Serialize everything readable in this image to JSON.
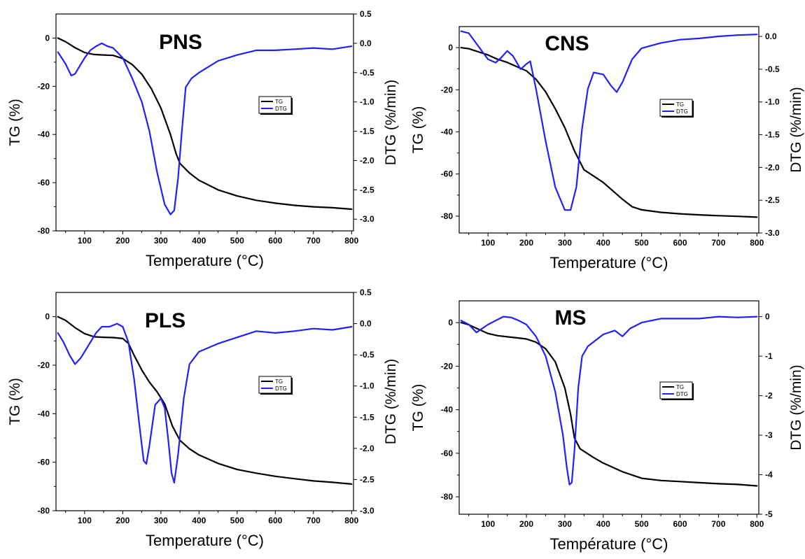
{
  "figure": {
    "colors": {
      "tg": "#000000",
      "dtg": "#2020ff",
      "axis": "#000000",
      "background": "#ffffff"
    }
  },
  "chart_data": [
    {
      "type": "line",
      "title": "PNS",
      "xlabel": "Temperature (°C)",
      "ylabel": "TG (%)",
      "y2label": "DTG (%/min)",
      "xlim": [
        25,
        805
      ],
      "ylim": [
        -80,
        10
      ],
      "y2lim": [
        -3.2,
        0.5
      ],
      "xticks": [
        100,
        200,
        300,
        400,
        500,
        600,
        700,
        800
      ],
      "yticks": [
        0,
        -20,
        -40,
        -60,
        -80
      ],
      "y2ticks": [
        0.5,
        0.0,
        -0.5,
        -1.0,
        -1.5,
        -2.0,
        -2.5,
        -3.0
      ],
      "y2tick_labels": [
        "0.5",
        "0.0",
        "-0.5",
        "-1.0",
        "-1.5",
        "-2.0",
        "-2.5",
        "-3.0"
      ],
      "grid": false,
      "legend_position": "center-right",
      "series": [
        {
          "name": "TG",
          "axis": "left",
          "color": "#000000",
          "x": [
            30,
            50,
            75,
            100,
            125,
            150,
            175,
            200,
            225,
            250,
            275,
            300,
            325,
            340,
            350,
            375,
            400,
            450,
            500,
            550,
            600,
            650,
            700,
            750,
            800
          ],
          "y": [
            0,
            -1.5,
            -4,
            -6,
            -6.8,
            -7,
            -7.2,
            -8.5,
            -11,
            -15,
            -21,
            -29,
            -40,
            -48,
            -52,
            -56,
            -59,
            -63,
            -65.5,
            -67.3,
            -68.5,
            -69.4,
            -70,
            -70.4,
            -71
          ]
        },
        {
          "name": "DTG",
          "axis": "right",
          "color": "#2020ff",
          "x": [
            30,
            50,
            65,
            75,
            100,
            115,
            130,
            145,
            160,
            175,
            200,
            225,
            250,
            270,
            290,
            310,
            325,
            335,
            345,
            355,
            365,
            380,
            400,
            450,
            500,
            550,
            600,
            650,
            700,
            750,
            800
          ],
          "y": [
            -0.15,
            -0.35,
            -0.55,
            -0.52,
            -0.25,
            -0.12,
            -0.05,
            0.0,
            -0.05,
            -0.08,
            -0.25,
            -0.6,
            -1.0,
            -1.5,
            -2.2,
            -2.75,
            -2.92,
            -2.85,
            -2.3,
            -1.5,
            -0.75,
            -0.6,
            -0.5,
            -0.3,
            -0.2,
            -0.12,
            -0.12,
            -0.1,
            -0.08,
            -0.1,
            -0.05
          ]
        }
      ]
    },
    {
      "type": "line",
      "title": "CNS",
      "xlabel": "Temperature (°C)",
      "ylabel": "TG (%)",
      "y2label": "DTG (%/min)",
      "xlim": [
        25,
        805
      ],
      "ylim": [
        -88,
        10
      ],
      "y2lim": [
        -3.0,
        0.15
      ],
      "xticks": [
        100,
        200,
        300,
        400,
        500,
        600,
        700,
        800
      ],
      "yticks": [
        0,
        -20,
        -40,
        -60,
        -80
      ],
      "y2ticks": [
        0.0,
        -0.5,
        -1.0,
        -1.5,
        -2.0,
        -2.5,
        -3.0
      ],
      "y2tick_labels": [
        "0.0",
        "-0.5",
        "-1.0",
        "-1.5",
        "-2.0",
        "-2.5",
        "-3.0"
      ],
      "grid": false,
      "legend_position": "center-right",
      "series": [
        {
          "name": "TG",
          "axis": "left",
          "color": "#000000",
          "x": [
            30,
            50,
            75,
            100,
            125,
            150,
            175,
            200,
            225,
            250,
            275,
            300,
            325,
            350,
            375,
            400,
            425,
            450,
            475,
            500,
            550,
            600,
            650,
            700,
            750,
            800
          ],
          "y": [
            0,
            -0.5,
            -2,
            -3.5,
            -5.5,
            -7,
            -9,
            -11,
            -15,
            -21,
            -29,
            -38,
            -49,
            -58,
            -61,
            -64,
            -68,
            -72,
            -75.5,
            -77,
            -78.2,
            -78.9,
            -79.4,
            -79.8,
            -80.1,
            -80.5
          ]
        },
        {
          "name": "DTG",
          "axis": "right",
          "color": "#2020ff",
          "x": [
            30,
            50,
            75,
            100,
            120,
            135,
            150,
            165,
            185,
            200,
            210,
            225,
            250,
            275,
            300,
            315,
            330,
            345,
            360,
            375,
            400,
            420,
            435,
            450,
            475,
            500,
            550,
            600,
            650,
            700,
            750,
            800
          ],
          "y": [
            0.08,
            0.05,
            -0.15,
            -0.35,
            -0.4,
            -0.32,
            -0.22,
            -0.3,
            -0.5,
            -0.42,
            -0.38,
            -0.8,
            -1.6,
            -2.3,
            -2.65,
            -2.65,
            -2.3,
            -1.4,
            -0.8,
            -0.55,
            -0.58,
            -0.75,
            -0.85,
            -0.7,
            -0.35,
            -0.18,
            -0.1,
            -0.05,
            -0.03,
            0.0,
            0.02,
            0.03
          ]
        }
      ]
    },
    {
      "type": "line",
      "title": "PLS",
      "xlabel": "Temperature (°C)",
      "ylabel": "TG (%)",
      "y2label": "DTG (%/min)",
      "xlim": [
        25,
        805
      ],
      "ylim": [
        -80,
        10
      ],
      "y2lim": [
        -3.0,
        0.5
      ],
      "xticks": [
        100,
        200,
        300,
        400,
        500,
        600,
        700,
        800
      ],
      "yticks": [
        0,
        -20,
        -40,
        -60,
        -80
      ],
      "y2ticks": [
        0.5,
        0.0,
        -0.5,
        -1.0,
        -1.5,
        -2.0,
        -2.5,
        -3.0
      ],
      "y2tick_labels": [
        "0.5",
        "0.0",
        "-0.5",
        "-1.0",
        "-1.5",
        "-2.0",
        "-2.5",
        "-3.0"
      ],
      "grid": false,
      "legend_position": "center-right",
      "series": [
        {
          "name": "TG",
          "axis": "left",
          "color": "#000000",
          "x": [
            30,
            50,
            75,
            100,
            125,
            150,
            175,
            200,
            215,
            230,
            250,
            270,
            290,
            310,
            330,
            350,
            375,
            400,
            450,
            500,
            550,
            600,
            650,
            700,
            750,
            800
          ],
          "y": [
            0,
            -1.5,
            -4.5,
            -7,
            -8.3,
            -8.5,
            -8.6,
            -9,
            -11,
            -16,
            -22,
            -27,
            -31,
            -36,
            -45,
            -51,
            -54.5,
            -57,
            -60.5,
            -63,
            -64.5,
            -65.8,
            -66.8,
            -67.7,
            -68.3,
            -69
          ]
        },
        {
          "name": "DTG",
          "axis": "right",
          "color": "#2020ff",
          "x": [
            30,
            45,
            60,
            75,
            90,
            110,
            130,
            145,
            165,
            185,
            200,
            215,
            230,
            245,
            255,
            262,
            270,
            285,
            300,
            310,
            320,
            328,
            335,
            345,
            360,
            375,
            400,
            450,
            500,
            550,
            600,
            650,
            700,
            750,
            800
          ],
          "y": [
            -0.15,
            -0.3,
            -0.5,
            -0.65,
            -0.55,
            -0.35,
            -0.15,
            -0.05,
            -0.05,
            0.0,
            -0.05,
            -0.3,
            -0.9,
            -1.7,
            -2.2,
            -2.25,
            -1.95,
            -1.3,
            -1.2,
            -1.35,
            -1.9,
            -2.4,
            -2.55,
            -2.1,
            -1.2,
            -0.65,
            -0.45,
            -0.32,
            -0.22,
            -0.12,
            -0.15,
            -0.12,
            -0.08,
            -0.1,
            -0.05
          ]
        }
      ]
    },
    {
      "type": "line",
      "title": "MS",
      "xlabel": "Température (°C)",
      "ylabel": "TG (%)",
      "y2label": "DTG (%/min)",
      "xlim": [
        25,
        805
      ],
      "ylim": [
        -88,
        10
      ],
      "y2lim": [
        -5,
        0.4
      ],
      "xticks": [
        100,
        200,
        300,
        400,
        500,
        600,
        700,
        800
      ],
      "yticks": [
        0,
        -20,
        -40,
        -60,
        -80
      ],
      "y2ticks": [
        0,
        -1,
        -2,
        -3,
        -4,
        -5
      ],
      "y2tick_labels": [
        "0",
        "-1",
        "-2",
        "-3",
        "-4",
        "-5"
      ],
      "grid": false,
      "legend_position": "center-right",
      "series": [
        {
          "name": "TG",
          "axis": "left",
          "color": "#000000",
          "x": [
            30,
            50,
            75,
            100,
            125,
            150,
            175,
            200,
            225,
            250,
            275,
            300,
            315,
            325,
            340,
            375,
            400,
            450,
            500,
            550,
            600,
            650,
            700,
            750,
            800
          ],
          "y": [
            0,
            -1,
            -3,
            -5,
            -6,
            -6.5,
            -7,
            -7.5,
            -9,
            -12,
            -18,
            -30,
            -42,
            -53,
            -58,
            -62,
            -64.5,
            -68.5,
            -71.5,
            -72.5,
            -73,
            -73.5,
            -74,
            -74.3,
            -75
          ]
        },
        {
          "name": "DTG",
          "axis": "right",
          "color": "#2020ff",
          "x": [
            30,
            50,
            70,
            85,
            100,
            120,
            140,
            160,
            180,
            200,
            225,
            250,
            275,
            295,
            305,
            312,
            318,
            325,
            335,
            345,
            360,
            380,
            400,
            430,
            450,
            470,
            500,
            550,
            600,
            650,
            700,
            750,
            800
          ],
          "y": [
            -0.1,
            -0.2,
            -0.4,
            -0.3,
            -0.2,
            -0.1,
            0.0,
            -0.02,
            -0.1,
            -0.2,
            -0.5,
            -1.0,
            -1.9,
            -3.0,
            -3.8,
            -4.25,
            -4.2,
            -3.4,
            -1.8,
            -1.0,
            -0.75,
            -0.6,
            -0.45,
            -0.35,
            -0.5,
            -0.3,
            -0.15,
            -0.05,
            -0.05,
            -0.05,
            0.0,
            -0.02,
            0.0
          ]
        }
      ]
    }
  ]
}
